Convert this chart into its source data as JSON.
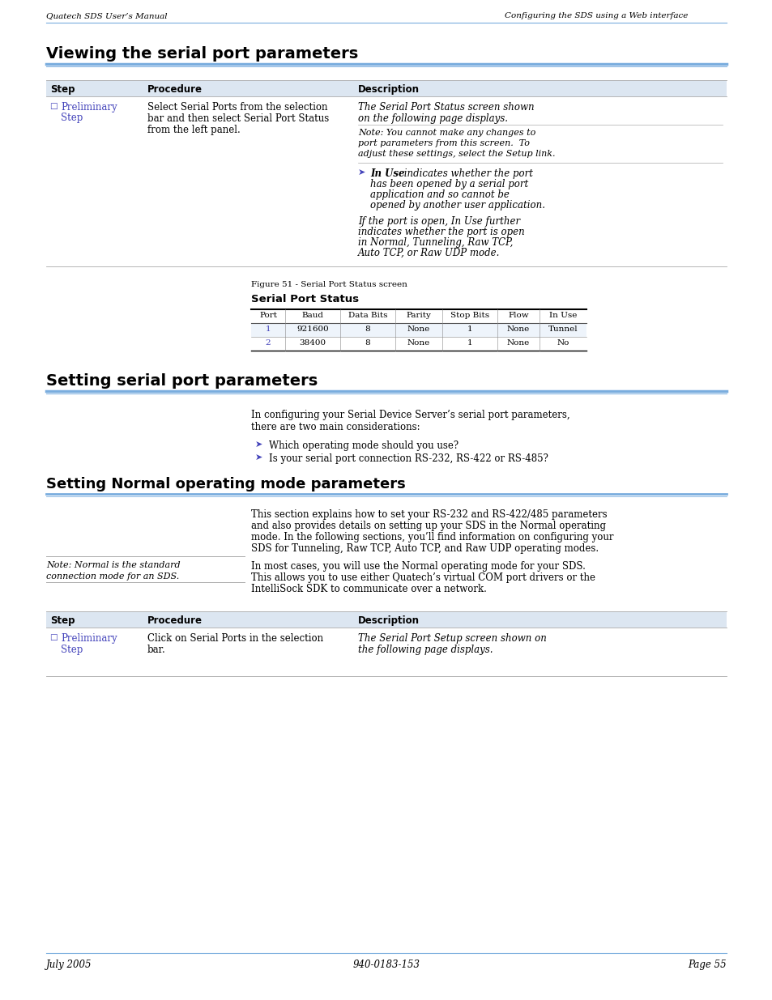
{
  "header_left": "Quatech SDS User’s Manual",
  "header_right": "Configuring the SDS using a Web interface",
  "header_line_color": "#7aadde",
  "section1_title": "Viewing the serial port parameters",
  "section2_title": "Setting serial port parameters",
  "section3_title": "Setting Normal operating mode parameters",
  "section_line_color": "#7aadde",
  "table1_header": [
    "Step",
    "Procedure",
    "Description"
  ],
  "table1_header_bg": "#dce6f1",
  "table2_headers": [
    "Port",
    "Baud",
    "Data Bits",
    "Parity",
    "Stop Bits",
    "Flow",
    "In Use"
  ],
  "table2_row1": [
    "1",
    "921600",
    "8",
    "None",
    "1",
    "None",
    "Tunnel"
  ],
  "table2_row2": [
    "2",
    "38400",
    "8",
    "None",
    "1",
    "None",
    "No"
  ],
  "figure_caption": "Figure 51 - Serial Port Status screen",
  "figure_title": "Serial Port Status",
  "section2_bullet1": "Which operating mode should you use?",
  "section2_bullet2": "Is your serial port connection RS-232, RS-422 or RS-485?",
  "footer_left": "July 2005",
  "footer_center": "940-0183-153",
  "footer_right": "Page 55",
  "link_color": "#4444bb",
  "bg_color": "#ffffff",
  "text_color": "#000000",
  "gray_line": "#aaaaaa"
}
